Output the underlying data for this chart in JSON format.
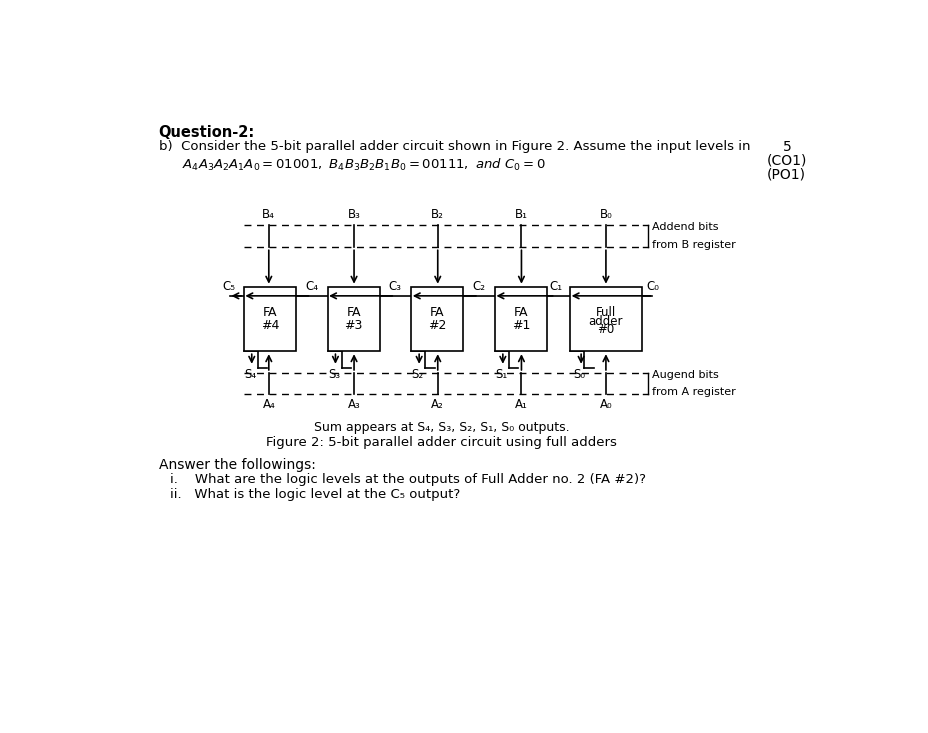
{
  "title_q": "Question-2:",
  "title_b": "b)  Consider the 5-bit parallel adder circuit shown in Figure 2. Assume the input levels in",
  "title_b2": "$A_4A_3A_2A_1A_0 = 01001,\\ B_4B_3B_2B_1B_0 = 00111,\\ and\\ C_0 = 0$",
  "score": "5",
  "score2": "(CO1)",
  "score3": "(PO1)",
  "fig_caption": "Figure 2: 5-bit parallel adder circuit using full adders",
  "sum_caption": "Sum appears at S₄, S₃, S₂, S₁, S₀ outputs.",
  "answer_heading": "Answer the followings:",
  "q_i": "i.    What are the logic levels at the outputs of Full Adder no. 2 (FA #2)?",
  "q_ii": "ii.   What is the logic level at the C₅ output?",
  "bg_color": "#ffffff",
  "B_labels": [
    "B₄",
    "B₃",
    "B₂",
    "B₁",
    "B₀"
  ],
  "A_labels": [
    "A₄",
    "A₃",
    "A₂",
    "A₁",
    "A₀"
  ],
  "S_labels": [
    "S₄",
    "S₃",
    "S₂",
    "S₁",
    "S₀"
  ],
  "C_labels": [
    "C₅",
    "C₄",
    "C₃",
    "C₂",
    "C₁",
    "C₀"
  ]
}
